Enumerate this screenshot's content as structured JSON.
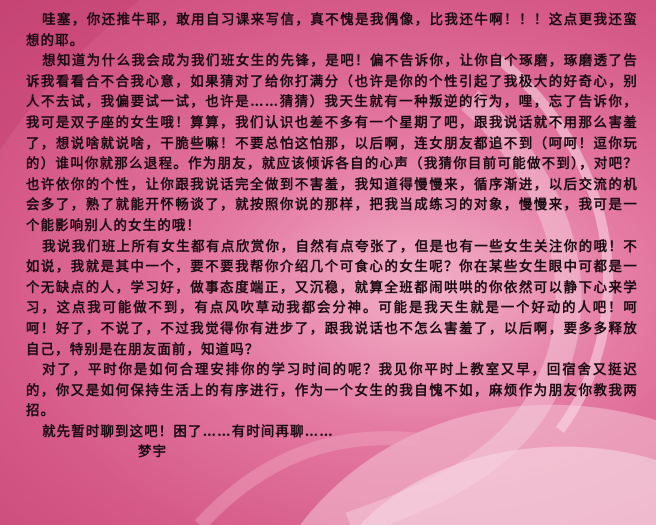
{
  "letter": {
    "paragraphs": [
      "哇塞，你还推牛耶，敢用自习课来写信，真不愧是我偶像，比我还牛啊！！！这点更我还蛮想的耶。",
      "想知道为什么我会成为我们班女生的先锋，是吧！偏不告诉你，让你自个琢磨，琢磨透了告诉我看看合不合我心意，如果猜对了给你打满分（也许是你的个性引起了我极大的好奇心，别人不去试，我偏要试一试，也许是……猜猜）我天生就有一种叛逆的行为，哩，忘了告诉你，我可是双子座的女生哦！算算，我们认识也差不多有一个星期了吧，跟我说话就不用那么害羞了，想说啥就说啥，干脆些嘛！不要总怕这怕那，以后啊，连女朋友都追不到（呵呵！逗你玩的）谁叫你就那么退程。作为朋友，就应该倾诉各自的心声（我猜你目前可能做不到），对吧？也许依你的个性，让你跟我说话完全做到不害羞，我知道得慢慢来，循序渐进，以后交流的机会多了，熟了就能开怀畅谈了，就按照你说的那样，把我当成练习的对象，慢慢来，我可是一个能影响别人的女生的哦！",
      "我说我们班上所有女生都有点欣赏你，自然有点夸张了，但是也有一些女生关注你的哦！不如说，我就是其中一个，要不要我帮你介绍几个可食心的女生呢？你在某些女生眼中可都是一个无缺点的人，学习好，做事态度端正，又沉稳，就算全班都闹哄哄的你依然可以静下心来学习，这点我可能做不到，有点风吹草动我都会分神。可能是我天生就是一个好动的人吧！呵呵！好了，不说了，不过我觉得你有进步了，跟我说话也不怎么害羞了，以后啊，要多多释放自己，特别是在朋友面前，知道吗？",
      "对了，平时你是如何合理安排你的学习时间的呢？我见你平时上教室又早，回宿舍又挺迟的，你又是如何保持生活上的有序进行，作为一个女生的我自愧不如，麻烦作为朋友你教我两招。",
      "就先暂时聊到这吧！困了……有时间再聊……"
    ],
    "signature": "梦宇"
  }
}
